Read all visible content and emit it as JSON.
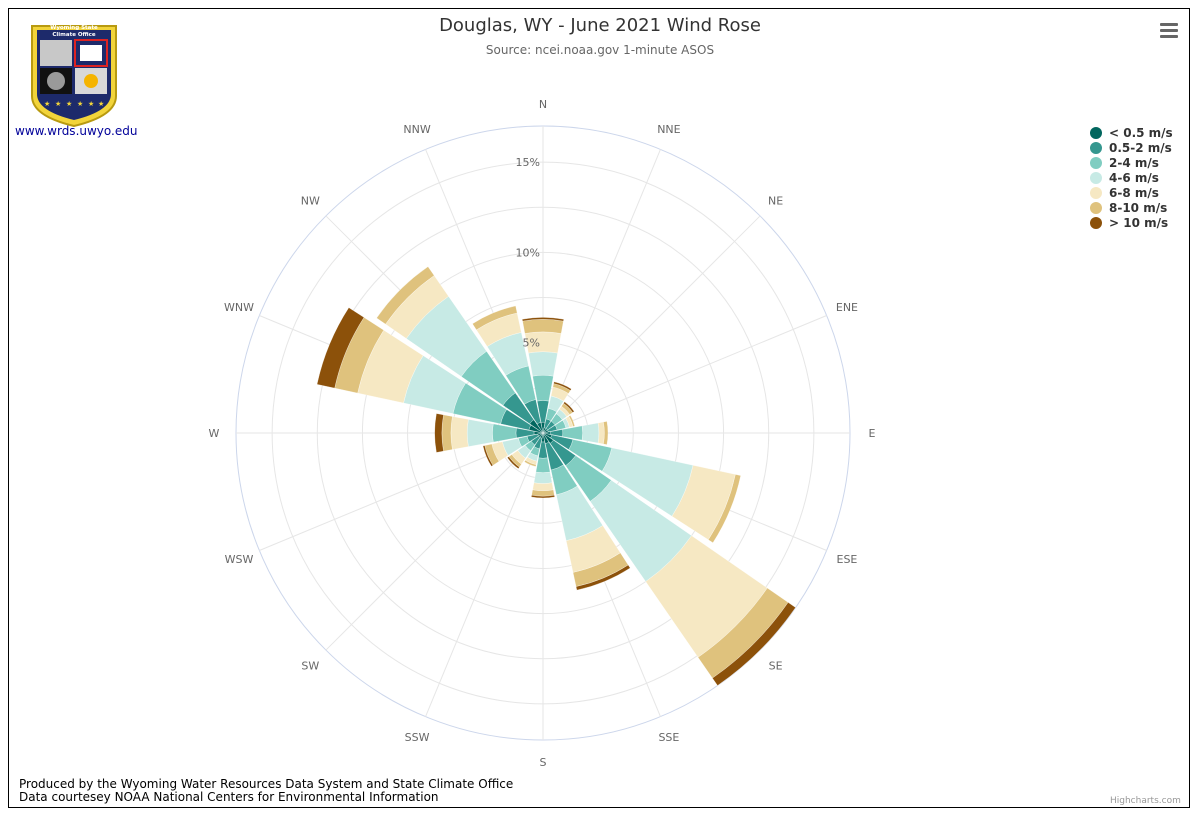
{
  "header": {
    "title": "Douglas, WY - June 2021 Wind Rose",
    "subtitle": "Source: ncei.noaa.gov 1-minute ASOS",
    "link": "www.wrds.uwyo.edu"
  },
  "logo": {
    "banner_line1": "Wyoming State",
    "banner_line2": "Climate Office"
  },
  "footer": {
    "line1": "Produced by the Wyoming Water Resources Data System and State Climate Office",
    "line2": "Data courtesey NOAA National Centers for Environmental Information"
  },
  "credits": "Highcharts.com",
  "menu_icon": "hamburger-menu-icon",
  "chart_data": {
    "type": "bar",
    "polar": true,
    "stacked": true,
    "categories": [
      "N",
      "NNE",
      "NE",
      "ENE",
      "E",
      "ESE",
      "SE",
      "SSE",
      "S",
      "SSW",
      "SW",
      "WSW",
      "W",
      "WNW",
      "NW",
      "NNW"
    ],
    "radial_ticks": [
      "5%",
      "10%",
      "15%"
    ],
    "ylim": [
      0,
      17
    ],
    "legend_position": "top-right",
    "series": [
      {
        "name": "< 0.5 m/s",
        "color": "#01665e",
        "values": [
          0.6,
          0.3,
          0.3,
          0.3,
          0.4,
          0.5,
          0.7,
          0.6,
          0.5,
          0.3,
          0.3,
          0.3,
          0.5,
          0.8,
          0.9,
          0.6
        ]
      },
      {
        "name": "0.5-2 m/s",
        "color": "#35978f",
        "values": [
          1.2,
          0.5,
          0.5,
          0.5,
          0.7,
          1.2,
          1.5,
          1.5,
          0.9,
          0.6,
          0.5,
          0.6,
          1.0,
          1.6,
          1.8,
          1.3
        ]
      },
      {
        "name": "2-4 m/s",
        "color": "#80cdc1",
        "values": [
          1.4,
          0.6,
          0.5,
          0.5,
          1.1,
          2.2,
          2.4,
          1.4,
          0.8,
          0.4,
          0.4,
          0.5,
          1.3,
          2.7,
          2.8,
          1.9
        ]
      },
      {
        "name": "4-6 m/s",
        "color": "#c7eae5",
        "values": [
          1.3,
          0.7,
          0.3,
          0.2,
          0.9,
          4.6,
          5.4,
          2.6,
          0.6,
          0.3,
          0.5,
          0.9,
          1.4,
          2.8,
          3.7,
          1.9
        ]
      },
      {
        "name": "6-8 m/s",
        "color": "#f6e8c3",
        "values": [
          1.1,
          0.5,
          0.2,
          0.2,
          0.3,
          2.4,
          5.1,
          1.8,
          0.4,
          0.2,
          0.4,
          0.6,
          0.9,
          2.6,
          1.4,
          1.1
        ]
      },
      {
        "name": "8-10 m/s",
        "color": "#dfc27d",
        "values": [
          0.7,
          0.2,
          0.2,
          0.1,
          0.2,
          0.3,
          1.4,
          0.8,
          0.3,
          0.1,
          0.2,
          0.4,
          0.5,
          1.3,
          0.6,
          0.4
        ]
      },
      {
        "name": "> 10 m/s",
        "color": "#8c510a",
        "values": [
          0.1,
          0.1,
          0.1,
          0.0,
          0.0,
          0.0,
          0.5,
          0.2,
          0.1,
          0.0,
          0.1,
          0.1,
          0.4,
          1.0,
          0.0,
          0.0
        ]
      }
    ]
  }
}
